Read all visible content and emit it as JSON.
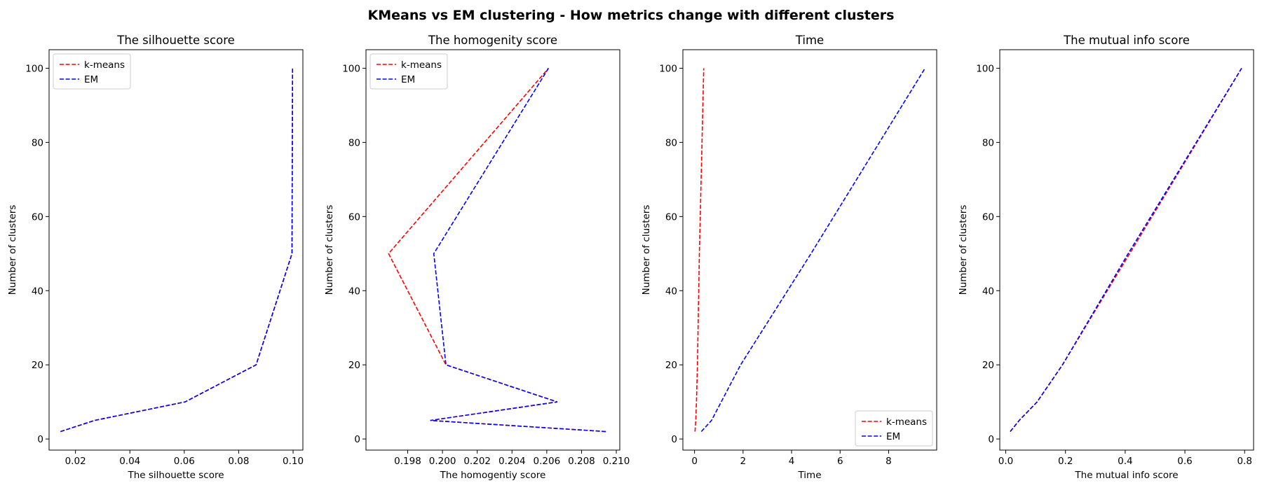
{
  "figure": {
    "title": "KMeans vs EM clustering - How metrics change with different clusters"
  },
  "chart_data": [
    {
      "type": "line",
      "title": "The silhouette score",
      "xlabel": "The silhouette score",
      "ylabel": "Number of clusters",
      "xlim": [
        0.0103,
        0.1036
      ],
      "ylim": [
        -3,
        105
      ],
      "xticks": [
        0.02,
        0.04,
        0.06,
        0.08,
        0.1
      ],
      "xtick_labels": [
        "0.02",
        "0.04",
        "0.06",
        "0.08",
        "0.10"
      ],
      "yticks": [
        0,
        20,
        40,
        60,
        80,
        100
      ],
      "ytick_labels": [
        "0",
        "20",
        "40",
        "60",
        "80",
        "100"
      ],
      "grid": false,
      "legend_position": "upper left",
      "series": [
        {
          "name": "k-means",
          "color": "#ff0000",
          "x": [
            0.0145,
            0.027,
            0.0603,
            0.0864,
            0.0996,
            0.0998
          ],
          "y": [
            2,
            5,
            10,
            20,
            50,
            100
          ]
        },
        {
          "name": "EM",
          "color": "#0000ff",
          "x": [
            0.0145,
            0.027,
            0.0603,
            0.0864,
            0.0996,
            0.0998
          ],
          "y": [
            2,
            5,
            10,
            20,
            50,
            100
          ]
        }
      ]
    },
    {
      "type": "line",
      "title": "The homogenity score",
      "xlabel": "The homogentiy score",
      "ylabel": "Number of clusters",
      "xlim": [
        0.1956,
        0.2102
      ],
      "ylim": [
        -3,
        105
      ],
      "xticks": [
        0.198,
        0.2,
        0.202,
        0.204,
        0.206,
        0.208,
        0.21
      ],
      "xtick_labels": [
        "0.198",
        "0.200",
        "0.202",
        "0.204",
        "0.206",
        "0.208",
        "0.210"
      ],
      "yticks": [
        0,
        20,
        40,
        60,
        80,
        100
      ],
      "ytick_labels": [
        "0",
        "20",
        "40",
        "60",
        "80",
        "100"
      ],
      "grid": false,
      "legend_position": "upper left",
      "series": [
        {
          "name": "k-means",
          "color": "#ff0000",
          "x": [
            0.2094,
            0.1993,
            0.2066,
            0.2002,
            0.1969,
            0.2061
          ],
          "y": [
            2,
            5,
            10,
            20,
            50,
            100
          ]
        },
        {
          "name": "EM",
          "color": "#0000ff",
          "x": [
            0.2094,
            0.1993,
            0.2066,
            0.2002,
            0.1995,
            0.2061
          ],
          "y": [
            2,
            5,
            10,
            20,
            50,
            100
          ]
        }
      ]
    },
    {
      "type": "line",
      "title": "Time",
      "xlabel": "Time",
      "ylabel": "Number of clusters",
      "xlim": [
        -0.48,
        9.98
      ],
      "ylim": [
        -3,
        105
      ],
      "xticks": [
        0,
        2,
        4,
        6,
        8
      ],
      "xtick_labels": [
        "0",
        "2",
        "4",
        "6",
        "8"
      ],
      "yticks": [
        0,
        20,
        40,
        60,
        80,
        100
      ],
      "ytick_labels": [
        "0",
        "20",
        "40",
        "60",
        "80",
        "100"
      ],
      "grid": false,
      "legend_position": "lower right",
      "series": [
        {
          "name": "k-means",
          "color": "#ff0000",
          "x": [
            0.02,
            0.05,
            0.08,
            0.12,
            0.2,
            0.38
          ],
          "y": [
            2,
            5,
            10,
            20,
            50,
            100
          ]
        },
        {
          "name": "EM",
          "color": "#0000ff",
          "x": [
            0.28,
            0.7,
            1.1,
            1.9,
            4.8,
            9.5
          ],
          "y": [
            2,
            5,
            10,
            20,
            50,
            100
          ]
        }
      ]
    },
    {
      "type": "line",
      "title": "The mutual info score",
      "xlabel": "The mutual info score",
      "ylabel": "Number of clusters",
      "xlim": [
        -0.02,
        0.83
      ],
      "ylim": [
        -3,
        105
      ],
      "xticks": [
        0.0,
        0.2,
        0.4,
        0.6,
        0.8
      ],
      "xtick_labels": [
        "0.0",
        "0.2",
        "0.4",
        "0.6",
        "0.8"
      ],
      "yticks": [
        0,
        20,
        40,
        60,
        80,
        100
      ],
      "ytick_labels": [
        "0",
        "20",
        "40",
        "60",
        "80",
        "100"
      ],
      "grid": false,
      "legend_position": "none",
      "series": [
        {
          "name": "k-means",
          "color": "#ff0000",
          "x": [
            0.015,
            0.045,
            0.105,
            0.19,
            0.415,
            0.79
          ],
          "y": [
            2,
            5,
            10,
            20,
            50,
            100
          ]
        },
        {
          "name": "EM",
          "color": "#0000ff",
          "x": [
            0.015,
            0.045,
            0.105,
            0.19,
            0.41,
            0.79
          ],
          "y": [
            2,
            5,
            10,
            20,
            50,
            100
          ]
        }
      ]
    }
  ]
}
